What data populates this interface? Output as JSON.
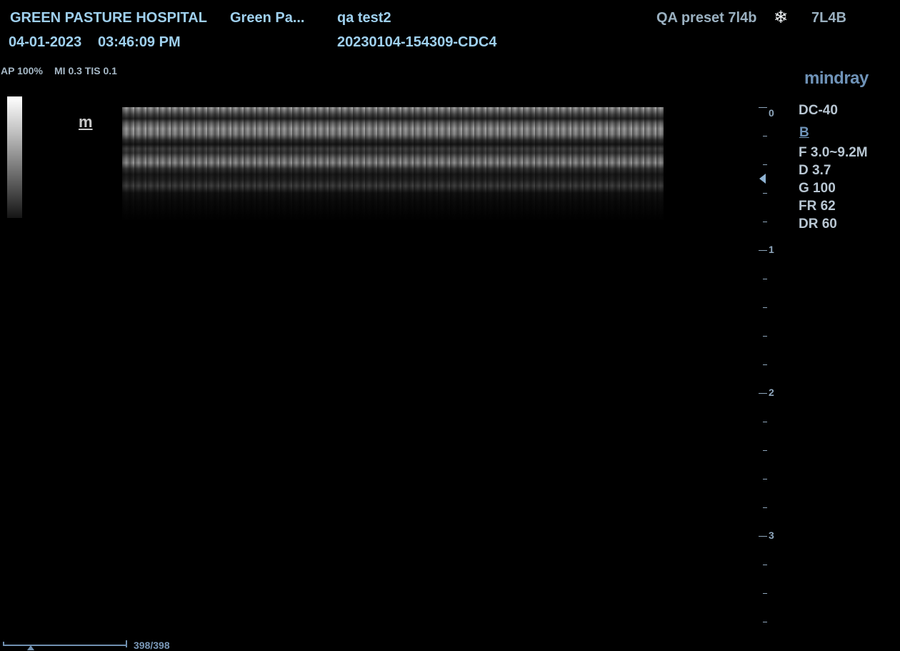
{
  "header": {
    "hospital": "GREEN PASTURE HOSPITAL",
    "department": "Green Pa...",
    "patient": "qa test2",
    "date": "04-01-2023",
    "time": "03:46:09 PM",
    "exam_id": "20230104-154309-CDC4",
    "preset": "QA preset 7l4b",
    "probe": "7L4B",
    "freeze_icon": "snowflake-icon"
  },
  "safety": {
    "ap": "AP 100%",
    "indices": "MI 0.3 TIS 0.1"
  },
  "brand": {
    "logo": "mindray"
  },
  "params": {
    "model": "DC-40",
    "mode": "B",
    "frequency": "F 3.0~9.2M",
    "depth": "D 3.7",
    "gain": "G 100",
    "frame_rate": "FR 62",
    "dynamic_range": "DR 60"
  },
  "scale": {
    "labels": [
      "0",
      "1",
      "2",
      "3"
    ]
  },
  "cine": {
    "count": "398/398"
  },
  "probe_mark": "m"
}
